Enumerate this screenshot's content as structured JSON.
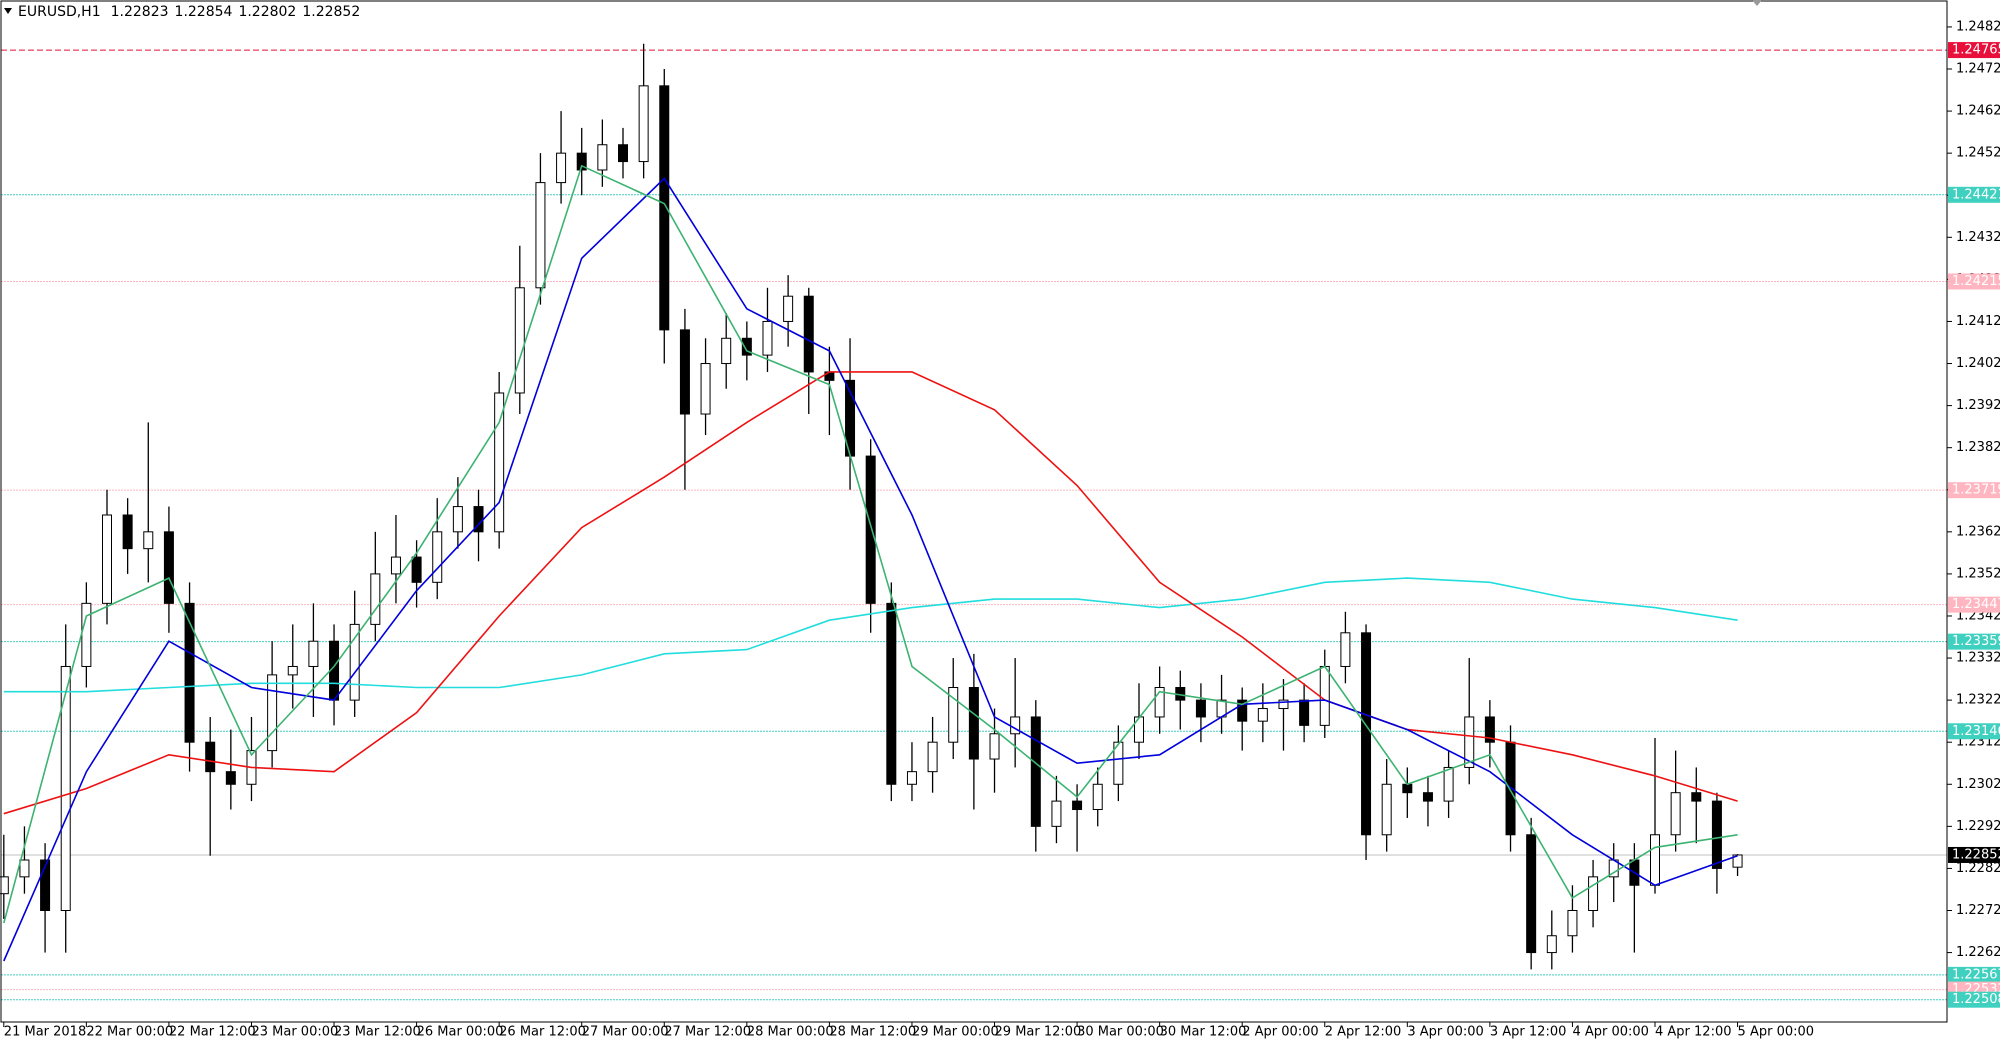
{
  "chart_data": {
    "type": "candlestick",
    "symbol": "EURUSD,H1",
    "categories": [
      "21 Mar 2018",
      null,
      null,
      null,
      "22 Mar 00:00",
      null,
      null,
      null,
      "22 Mar 12:00",
      null,
      null,
      null,
      "23 Mar 00:00",
      null,
      null,
      null,
      "23 Mar 12:00",
      null,
      null,
      null,
      "26 Mar 00:00",
      null,
      null,
      null,
      "26 Mar 12:00",
      null,
      null,
      null,
      "27 Mar 00:00",
      null,
      null,
      null,
      "27 Mar 12:00",
      null,
      null,
      null,
      "28 Mar 00:00",
      null,
      null,
      null,
      "28 Mar 12:00",
      null,
      null,
      null,
      "29 Mar 00:00",
      null,
      null,
      null,
      "29 Mar 12:00",
      null,
      null,
      null,
      "30 Mar 00:00",
      null,
      null,
      null,
      "30 Mar 12:00",
      null,
      null,
      null,
      "2 Apr 00:00",
      null,
      null,
      null,
      "2 Apr 12:00",
      null,
      null,
      null,
      "3 Apr 00:00",
      null,
      null,
      null,
      "3 Apr 12:00",
      null,
      null,
      null,
      "4 Apr 00:00",
      null,
      null,
      null,
      "4 Apr 12:00",
      null,
      null,
      null,
      "5 Apr 00:00"
    ],
    "open": [
      1.2276,
      1.228,
      1.2284,
      1.2272,
      1.233,
      1.2345,
      1.2366,
      1.2358,
      1.2362,
      1.2345,
      1.2312,
      1.2305,
      1.2302,
      1.231,
      1.2328,
      1.233,
      1.2336,
      1.2322,
      1.234,
      1.2352,
      1.2356,
      1.235,
      1.2362,
      1.2368,
      1.2362,
      1.2395,
      1.242,
      1.2445,
      1.2452,
      1.2448,
      1.2454,
      1.245,
      1.2468,
      1.241,
      1.239,
      1.2402,
      1.2408,
      1.2404,
      1.2412,
      1.2418,
      1.24,
      1.2398,
      1.238,
      1.2345,
      1.2302,
      1.2305,
      1.2312,
      1.2325,
      1.2308,
      1.2314,
      1.2318,
      1.2292,
      1.2298,
      1.2296,
      1.2302,
      1.2312,
      1.2318,
      1.2325,
      1.2322,
      1.2318,
      1.2322,
      1.2317,
      1.232,
      1.2322,
      1.2316,
      1.233,
      1.2338,
      1.229,
      1.2302,
      1.23,
      1.2298,
      1.2306,
      1.2318,
      1.2312,
      1.229,
      1.2262,
      1.2266,
      1.2272,
      1.228,
      1.2284,
      1.2278,
      1.229,
      1.23,
      1.2298,
      1.22823
    ],
    "high": [
      1.229,
      1.2292,
      1.2288,
      1.234,
      1.235,
      1.2372,
      1.237,
      1.2388,
      1.2368,
      1.235,
      1.2318,
      1.2315,
      1.2318,
      1.2336,
      1.234,
      1.2345,
      1.234,
      1.2348,
      1.2362,
      1.2366,
      1.236,
      1.237,
      1.2375,
      1.2372,
      1.24,
      1.243,
      1.2452,
      1.2462,
      1.2458,
      1.246,
      1.2458,
      1.2478,
      1.2472,
      1.2415,
      1.2408,
      1.2414,
      1.2412,
      1.242,
      1.2423,
      1.242,
      1.2406,
      1.2408,
      1.2384,
      1.235,
      1.2312,
      1.2318,
      1.2332,
      1.2333,
      1.232,
      1.2332,
      1.2322,
      1.2304,
      1.2302,
      1.2306,
      1.2316,
      1.2326,
      1.233,
      1.2329,
      1.2326,
      1.2328,
      1.2325,
      1.2326,
      1.2327,
      1.2326,
      1.2334,
      1.2343,
      1.234,
      1.2308,
      1.2306,
      1.2304,
      1.231,
      1.2332,
      1.2322,
      1.2316,
      1.2294,
      1.2272,
      1.2278,
      1.2284,
      1.2288,
      1.2288,
      1.2313,
      1.231,
      1.2306,
      1.23,
      1.22854
    ],
    "low": [
      1.227,
      1.2276,
      1.2262,
      1.2262,
      1.2325,
      1.234,
      1.2352,
      1.235,
      1.2338,
      1.2305,
      1.2285,
      1.2296,
      1.2298,
      1.2306,
      1.232,
      1.2318,
      1.2316,
      1.2318,
      1.2336,
      1.2345,
      1.2344,
      1.2346,
      1.2358,
      1.2355,
      1.2358,
      1.239,
      1.2416,
      1.244,
      1.2442,
      1.2444,
      1.2446,
      1.2446,
      1.2402,
      1.2372,
      1.2385,
      1.2396,
      1.2398,
      1.24,
      1.2406,
      1.239,
      1.2385,
      1.2372,
      1.2338,
      1.2298,
      1.2298,
      1.23,
      1.2308,
      1.2296,
      1.23,
      1.2306,
      1.2286,
      1.2288,
      1.2286,
      1.2292,
      1.2298,
      1.2308,
      1.2314,
      1.2315,
      1.2312,
      1.2314,
      1.231,
      1.2312,
      1.231,
      1.2312,
      1.2313,
      1.2326,
      1.2284,
      1.2286,
      1.2294,
      1.2292,
      1.2294,
      1.2302,
      1.2306,
      1.2286,
      1.2258,
      1.2258,
      1.2262,
      1.2268,
      1.2274,
      1.2262,
      1.2276,
      1.2286,
      1.2288,
      1.2276,
      1.22802
    ],
    "close": [
      1.228,
      1.2284,
      1.2272,
      1.233,
      1.2345,
      1.2366,
      1.2358,
      1.2362,
      1.2345,
      1.2312,
      1.2305,
      1.2302,
      1.231,
      1.2328,
      1.233,
      1.2336,
      1.2322,
      1.234,
      1.2352,
      1.2356,
      1.235,
      1.2362,
      1.2368,
      1.2362,
      1.2395,
      1.242,
      1.2445,
      1.2452,
      1.2448,
      1.2454,
      1.245,
      1.2468,
      1.241,
      1.239,
      1.2402,
      1.2408,
      1.2404,
      1.2412,
      1.2418,
      1.24,
      1.2398,
      1.238,
      1.2345,
      1.2302,
      1.2305,
      1.2312,
      1.2325,
      1.2308,
      1.2314,
      1.2318,
      1.2292,
      1.2298,
      1.2296,
      1.2302,
      1.2312,
      1.2318,
      1.2325,
      1.2322,
      1.2318,
      1.2322,
      1.2317,
      1.232,
      1.2322,
      1.2316,
      1.233,
      1.2338,
      1.229,
      1.2302,
      1.23,
      1.2298,
      1.2306,
      1.2318,
      1.2312,
      1.229,
      1.2262,
      1.2266,
      1.2272,
      1.228,
      1.2284,
      1.2278,
      1.229,
      1.23,
      1.2298,
      1.2282,
      1.22852
    ],
    "up_color": "#ffffff",
    "down_color": "#000000",
    "indicator_x": [
      0,
      4,
      8,
      12,
      16,
      20,
      24,
      28,
      32,
      36,
      40,
      44,
      48,
      52,
      56,
      60,
      64,
      68,
      72,
      76,
      80,
      84
    ],
    "indicators": [
      {
        "color": "#22dddd",
        "values": [
          1.2324,
          1.2324,
          1.2325,
          1.2326,
          1.2326,
          1.2325,
          1.2325,
          1.2328,
          1.2333,
          1.2334,
          1.2341,
          1.2344,
          1.2346,
          1.2346,
          1.2344,
          1.2346,
          1.235,
          1.2351,
          1.235,
          1.2346,
          1.2344,
          1.2341
        ]
      },
      {
        "color": "#ee1111",
        "values": [
          1.2295,
          1.2301,
          1.2309,
          1.2306,
          1.2305,
          1.2319,
          1.2342,
          1.2363,
          1.2375,
          1.2388,
          1.24,
          1.24,
          1.2391,
          1.2373,
          1.235,
          1.2337,
          1.2322,
          1.2315,
          1.2313,
          1.2309,
          1.2304,
          1.2298
        ]
      },
      {
        "color": "#0000dd",
        "values": [
          1.226,
          1.2305,
          1.2336,
          1.2325,
          1.2322,
          1.2348,
          1.2369,
          1.2427,
          1.2446,
          1.2415,
          1.2405,
          1.2366,
          1.2318,
          1.2307,
          1.2309,
          1.2321,
          1.2322,
          1.2315,
          1.2305,
          1.229,
          1.2278,
          1.2285
        ]
      },
      {
        "color": "#3cb371",
        "values": [
          1.2269,
          1.2342,
          1.2351,
          1.2309,
          1.233,
          1.2357,
          1.2388,
          1.2449,
          1.244,
          1.2405,
          1.2397,
          1.233,
          1.2315,
          1.2299,
          1.2324,
          1.2321,
          1.233,
          1.2302,
          1.2309,
          1.2275,
          1.2287,
          1.229
        ]
      }
    ],
    "levels": [
      {
        "value": 1.24765,
        "color": "#e8103a"
      },
      {
        "value": 1.24421,
        "color": "#40d0c0"
      },
      {
        "value": 1.24215,
        "color": "#ffb6c1"
      },
      {
        "value": 1.23719,
        "color": "#ffb6c1"
      },
      {
        "value": 1.23447,
        "color": "#ffb6c1"
      },
      {
        "value": 1.23359,
        "color": "#40d0c0"
      },
      {
        "value": 1.23146,
        "color": "#40d0c0"
      },
      {
        "value": 1.22567,
        "color": "#40d0c0"
      },
      {
        "value": 1.22532,
        "color": "#ffb6c1"
      },
      {
        "value": 1.22508,
        "color": "#40d0c0"
      }
    ],
    "ylim": [
      1.22455,
      1.24884
    ],
    "yticks": [
      {
        "value": 1.2262,
        "label": "1.22620"
      },
      {
        "value": 1.2272,
        "label": "1.22720"
      },
      {
        "value": 1.2282,
        "label": "1.22820"
      },
      {
        "value": 1.2292,
        "label": "1.22920"
      },
      {
        "value": 1.2302,
        "label": "1.23020"
      },
      {
        "value": 1.2312,
        "label": "1.23120"
      },
      {
        "value": 1.2322,
        "label": "1.23220"
      },
      {
        "value": 1.2332,
        "label": "1.23320"
      },
      {
        "value": 1.2342,
        "label": "1.23420"
      },
      {
        "value": 1.2352,
        "label": "1.23520"
      },
      {
        "value": 1.2362,
        "label": "1.23620"
      },
      {
        "value": 1.2372,
        "label": "1.23720"
      },
      {
        "value": 1.2382,
        "label": "1.23820"
      },
      {
        "value": 1.2392,
        "label": "1.23920"
      },
      {
        "value": 1.2402,
        "label": "1.24020"
      },
      {
        "value": 1.2412,
        "label": "1.24120"
      },
      {
        "value": 1.2422,
        "label": "1.24220"
      },
      {
        "value": 1.2432,
        "label": "1.24320"
      },
      {
        "value": 1.2442,
        "label": "1.24420"
      },
      {
        "value": 1.2452,
        "label": "1.24520"
      },
      {
        "value": 1.2462,
        "label": "1.24620"
      },
      {
        "value": 1.2472,
        "label": "1.24720"
      },
      {
        "value": 1.2482,
        "label": "1.24820"
      }
    ]
  }
}
